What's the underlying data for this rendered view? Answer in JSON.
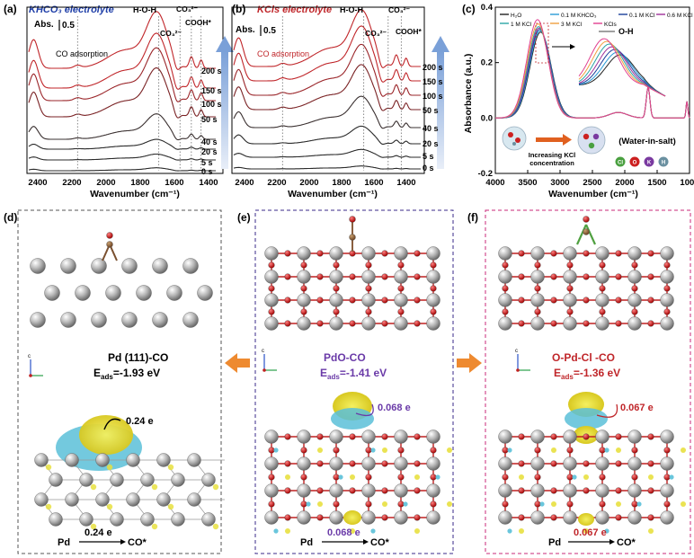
{
  "panel_a": {
    "letter": "(a)",
    "title": "KHCO₃ electrolyte",
    "scale": "Abs.",
    "scale_value": "0.5",
    "annotations": [
      "CO adsorption",
      "H-O-H",
      "CO₃²⁻",
      "CO₃²⁻",
      "COOH*"
    ],
    "xlabel": "Wavenumber (cm⁻¹)",
    "xticks": [
      "2400",
      "2200",
      "2000",
      "1800",
      "1600",
      "1400"
    ],
    "times": [
      "200 s",
      "150 s",
      "100 s",
      "50 s",
      "40 s",
      "20 s",
      "5 s",
      "0 s"
    ]
  },
  "panel_b": {
    "letter": "(b)",
    "title": "KCls electrolyte",
    "scale": "Abs.",
    "scale_value": "0.5",
    "annotations": [
      "CO adsorption",
      "H-O-H",
      "CO₃²⁻",
      "COOH*"
    ],
    "xlabel": "Wavenumber (cm⁻¹)",
    "xticks": [
      "2400",
      "2200",
      "2000",
      "1800",
      "1600",
      "1400"
    ],
    "times": [
      "200 s",
      "150 s",
      "100 s",
      "50 s",
      "40 s",
      "20 s",
      "5 s",
      "0 s"
    ]
  },
  "panel_c": {
    "letter": "(c)",
    "ylabel": "Absorbance (a.u.)",
    "xlabel": "Wavenumber (cm⁻¹)",
    "xticks": [
      "4000",
      "3500",
      "3000",
      "2500",
      "2000",
      "1500",
      "1000"
    ],
    "yticks": [
      "0.4",
      "0.2",
      "0.0",
      "-0.2"
    ],
    "legend": [
      {
        "label": "H₂O",
        "color": "#222222"
      },
      {
        "label": "0.1 M KHCO₃",
        "color": "#2a9bd6"
      },
      {
        "label": "0.1 M KCl",
        "color": "#1a3f9a"
      },
      {
        "label": "0.6 M KCl",
        "color": "#a0309a"
      },
      {
        "label": "1 M KCl",
        "color": "#2aa5a5"
      },
      {
        "label": "3 M KCl",
        "color": "#f0a040"
      },
      {
        "label": "KCls",
        "color": "#e04090"
      }
    ],
    "oh_label": "O-H",
    "increase_label_1": "Increasing KCl",
    "increase_label_2": "concentration",
    "wis_label": "(Water-in-salt)",
    "atoms": [
      {
        "symbol": "Cl",
        "color": "#4aa040"
      },
      {
        "symbol": "O",
        "color": "#cc2020"
      },
      {
        "symbol": "K",
        "color": "#7a3aa0"
      },
      {
        "symbol": "H",
        "color": "#6a90a0"
      }
    ]
  },
  "panel_d": {
    "letter": "(d)",
    "name": "Pd (111)-CO",
    "eads_prefix": "E",
    "eads_sub": "ads",
    "eads_value": "=-1.93 eV",
    "charge": "0.24 e",
    "transfer_from": "Pd",
    "transfer_value": "0.24 e",
    "transfer_to": "CO*",
    "axis_c": "c"
  },
  "panel_e": {
    "letter": "(e)",
    "name": "PdO-CO",
    "eads_prefix": "E",
    "eads_sub": "ads",
    "eads_value": "=-1.41 eV",
    "charge": "0.068 e",
    "transfer_from": "Pd",
    "transfer_value": "0.068 e",
    "transfer_to": "CO*",
    "axis_c": "c"
  },
  "panel_f": {
    "letter": "(f)",
    "name": "O-Pd-Cl -CO",
    "eads_prefix": "E",
    "eads_sub": "ads",
    "eads_value": "=-1.36 eV",
    "charge": "0.067 e",
    "transfer_from": "Pd",
    "transfer_value": "0.067 e",
    "transfer_to": "CO*",
    "axis_c": "c"
  },
  "chart_data": [
    {
      "type": "line",
      "panel": "a",
      "title": "KHCO₃ electrolyte",
      "xlabel": "Wavenumber (cm⁻¹)",
      "xlim": [
        2450,
        1300
      ],
      "x_reversed": true,
      "series": [
        {
          "name": "200 s",
          "color": "#c0262a"
        },
        {
          "name": "150 s",
          "color": "#c0262a"
        },
        {
          "name": "100 s",
          "color": "#9a2428"
        },
        {
          "name": "50 s",
          "color": "#7a2224"
        },
        {
          "name": "40 s",
          "color": "#3a3030"
        },
        {
          "name": "20 s",
          "color": "#2a2a2a"
        },
        {
          "name": "5 s",
          "color": "#2a2a2a"
        },
        {
          "name": "0 s",
          "color": "#2a2a2a"
        }
      ],
      "peaks_marked": [
        2150,
        1650,
        1520,
        1450,
        1390
      ]
    },
    {
      "type": "line",
      "panel": "b",
      "title": "KCls electrolyte",
      "xlabel": "Wavenumber (cm⁻¹)",
      "xlim": [
        2450,
        1300
      ],
      "x_reversed": true,
      "series": [
        {
          "name": "200 s",
          "color": "#c0262a"
        },
        {
          "name": "150 s",
          "color": "#c0262a"
        },
        {
          "name": "100 s",
          "color": "#9a2428"
        },
        {
          "name": "50 s",
          "color": "#7a2224"
        },
        {
          "name": "40 s",
          "color": "#3a3030"
        },
        {
          "name": "20 s",
          "color": "#2a2a2a"
        },
        {
          "name": "5 s",
          "color": "#2a2a2a"
        },
        {
          "name": "0 s",
          "color": "#2a2a2a"
        }
      ],
      "peaks_marked": [
        2150,
        1650,
        1500,
        1420
      ]
    },
    {
      "type": "line",
      "panel": "c",
      "ylabel": "Absorbance (a.u.)",
      "xlabel": "Wavenumber (cm⁻¹)",
      "xlim": [
        4000,
        1000
      ],
      "ylim": [
        -0.2,
        0.4
      ],
      "x_reversed": true,
      "peak_x": 3300,
      "series": [
        {
          "name": "H₂O",
          "peak": 0.31
        },
        {
          "name": "0.1 M KHCO₃",
          "peak": 0.315
        },
        {
          "name": "0.1 M KCl",
          "peak": 0.32
        },
        {
          "name": "0.6 M KCl",
          "peak": 0.325
        },
        {
          "name": "1 M KCl",
          "peak": 0.33
        },
        {
          "name": "3 M KCl",
          "peak": 0.34
        },
        {
          "name": "KCls",
          "peak": 0.355
        }
      ]
    }
  ]
}
